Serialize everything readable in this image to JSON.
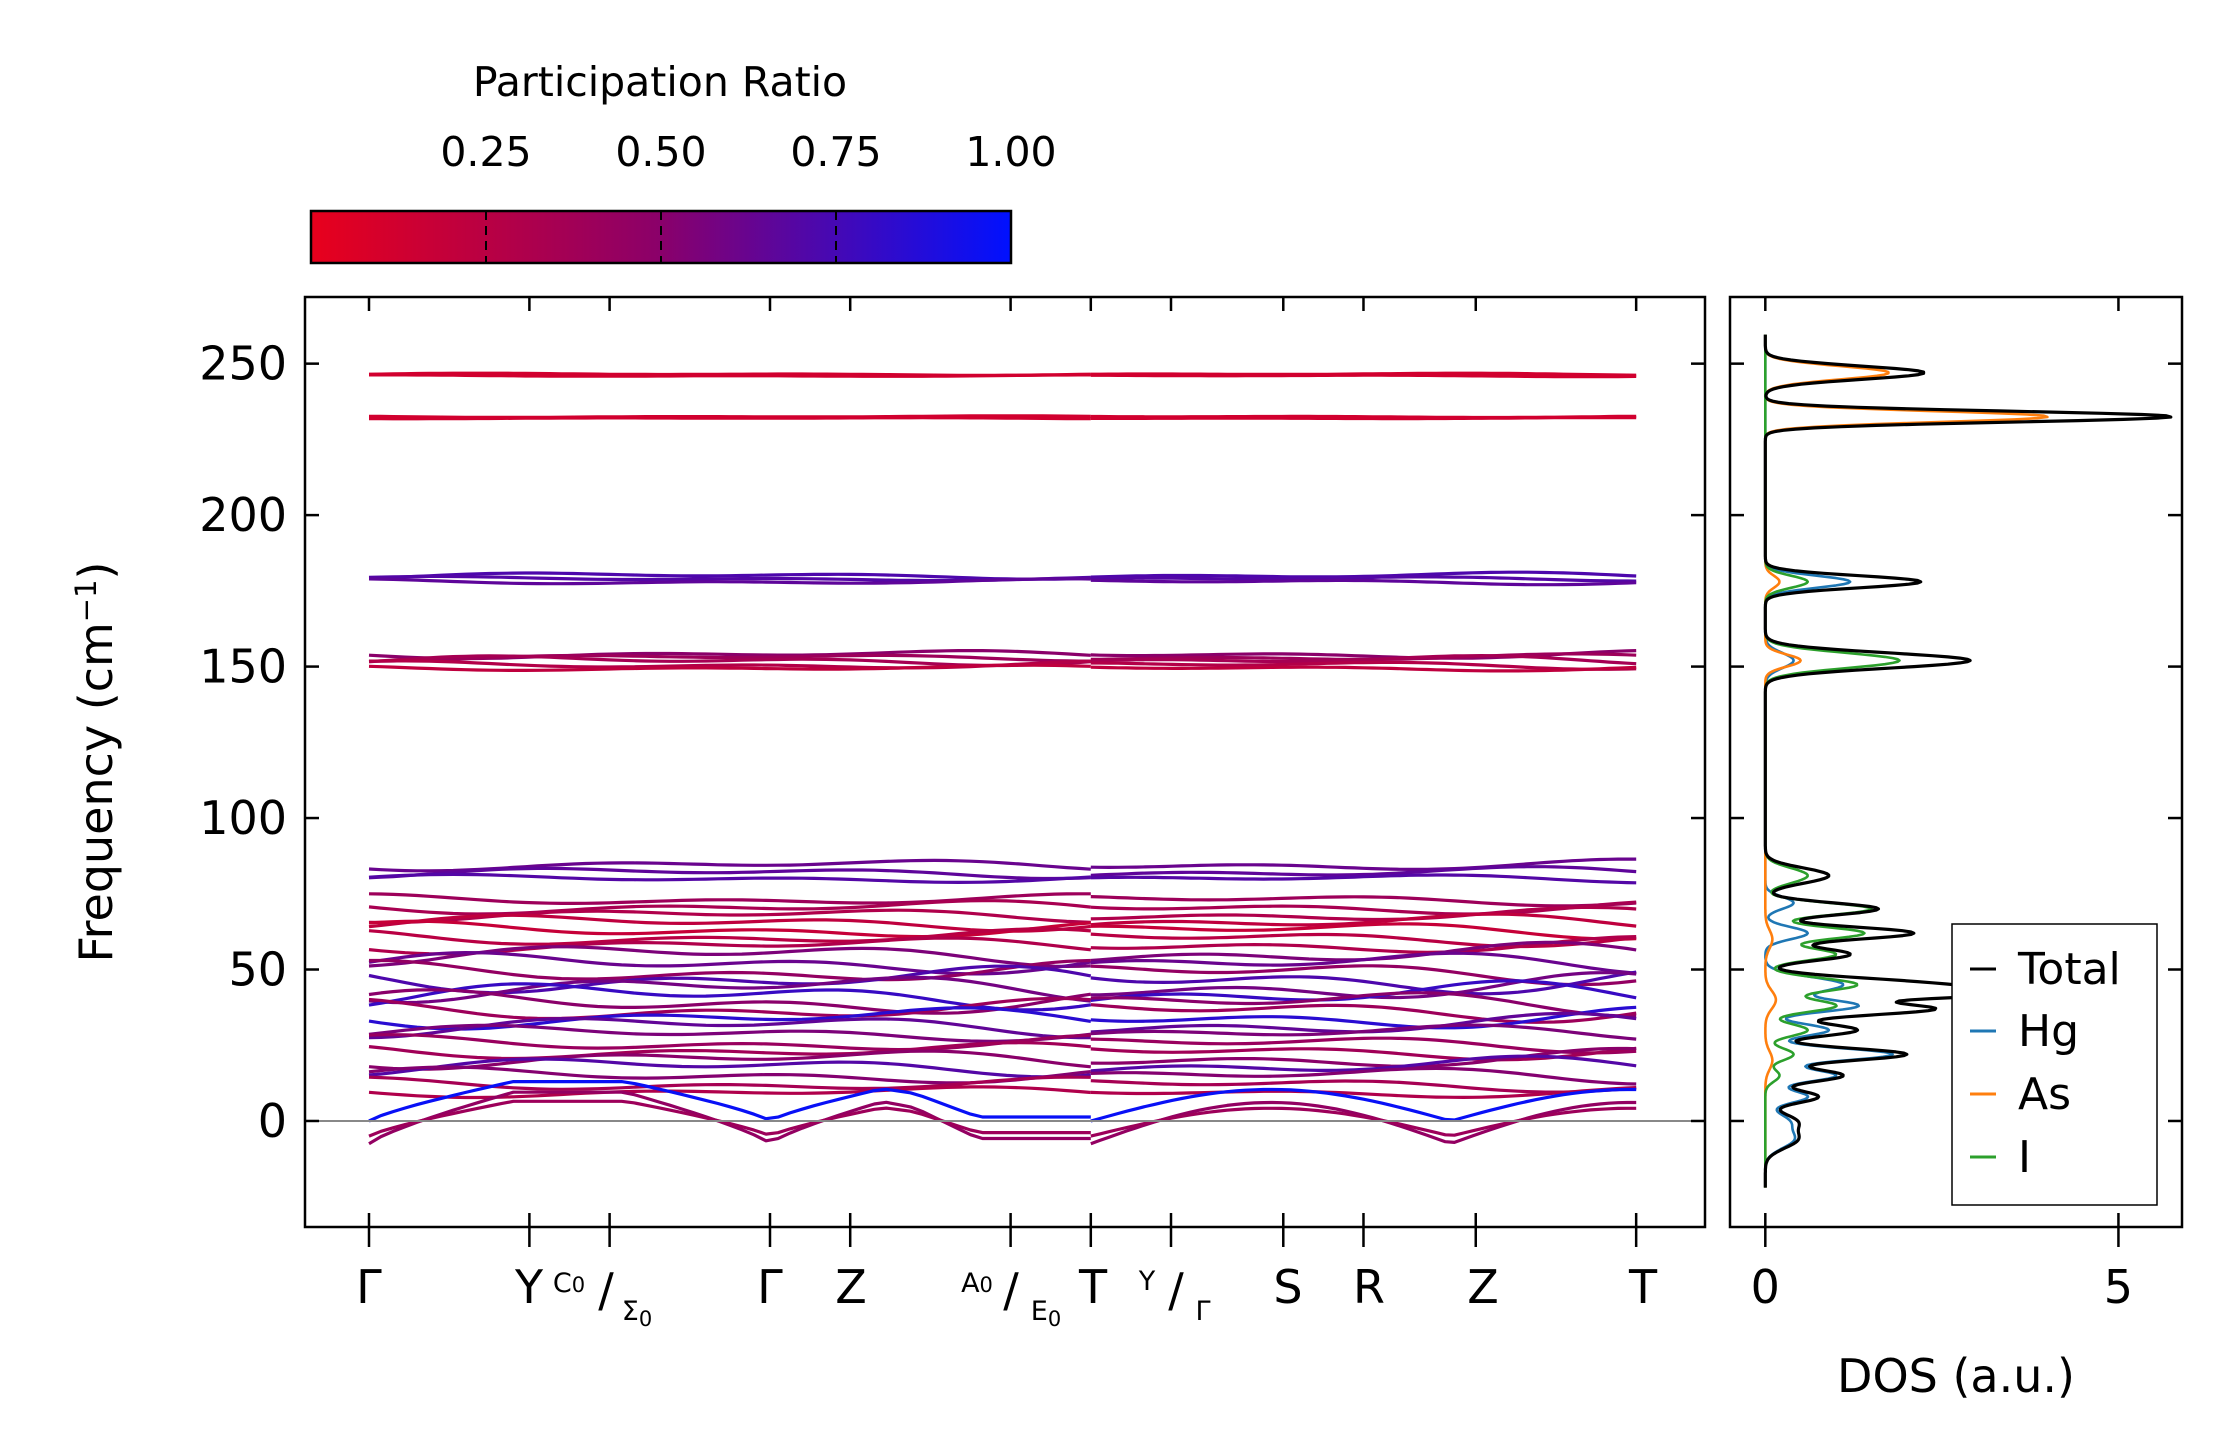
{
  "chart_data": [
    {
      "type": "line",
      "title": "",
      "ylabel": "Frequency (cm",
      "ylabel_sup": "−1",
      "ylabel_tail": ")",
      "ylim": [
        -35,
        272
      ],
      "yticks": [
        "0",
        "50",
        "100",
        "150",
        "200",
        "250"
      ],
      "ytick_values": [
        0,
        50,
        100,
        150,
        200,
        250
      ],
      "path_labels": {
        "gamma1": "Γ",
        "y": "Y",
        "c0": "C",
        "c0_sub": "0",
        "slash1": "/",
        "sigma0": "Σ",
        "sigma0_sub": "0",
        "gamma2": "Γ",
        "z1": "Z",
        "a0": "A",
        "a0_sub": "0",
        "slash2": "/",
        "e0": "E",
        "e0_sub": "0",
        "t1": "T",
        "y2": "Y",
        "slash3": "/",
        "gamma3": "Γ",
        "s": "S",
        "r": "R",
        "z2": "Z",
        "t2": "T"
      },
      "path_positions": [
        0,
        1,
        1.5,
        2.5,
        3,
        4,
        4.5,
        5,
        5.7,
        6.2,
        6.9,
        7.9
      ],
      "segment_break_after": 4.5,
      "colorbar": {
        "title": "Participation Ratio",
        "range": [
          0.0,
          1.0
        ],
        "ticks": [
          "0.25",
          "0.50",
          "0.75",
          "1.00"
        ],
        "tick_values": [
          0.25,
          0.5,
          0.75,
          1.0
        ],
        "color_low": "#e8001c",
        "color_mid": "#8a006a",
        "color_high": "#0011ff"
      },
      "bands": [
        {
          "f": 246.5,
          "pr": 0.12,
          "d": 0.4
        },
        {
          "f": 246.0,
          "pr": 0.12,
          "d": 0.3
        },
        {
          "f": 232.5,
          "pr": 0.12,
          "d": 0.3
        },
        {
          "f": 232.0,
          "pr": 0.12,
          "d": 0.2
        },
        {
          "f": 180.0,
          "pr": 0.72,
          "d": 1.2
        },
        {
          "f": 179.0,
          "pr": 0.7,
          "d": 0.8
        },
        {
          "f": 178.0,
          "pr": 0.66,
          "d": 1.0
        },
        {
          "f": 154.0,
          "pr": 0.5,
          "d": 1.5
        },
        {
          "f": 153.0,
          "pr": 0.4,
          "d": 1.2
        },
        {
          "f": 152.0,
          "pr": 0.35,
          "d": 1.8
        },
        {
          "f": 150.5,
          "pr": 0.28,
          "d": 1.4
        },
        {
          "f": 149.5,
          "pr": 0.22,
          "d": 1.0
        },
        {
          "f": 84.5,
          "pr": 0.62,
          "d": 2.0
        },
        {
          "f": 82.0,
          "pr": 0.66,
          "d": 2.0
        },
        {
          "f": 80.0,
          "pr": 0.7,
          "d": 1.5
        },
        {
          "f": 73.0,
          "pr": 0.4,
          "d": 2.0
        },
        {
          "f": 70.5,
          "pr": 0.34,
          "d": 2.5
        },
        {
          "f": 68.0,
          "pr": 0.3,
          "d": 2.5
        },
        {
          "f": 65.5,
          "pr": 0.22,
          "d": 3.0
        },
        {
          "f": 63.0,
          "pr": 0.18,
          "d": 3.0
        },
        {
          "f": 60.5,
          "pr": 0.25,
          "d": 3.0
        },
        {
          "f": 58.0,
          "pr": 0.3,
          "d": 3.0
        },
        {
          "f": 55.0,
          "pr": 0.55,
          "d": 4.0
        },
        {
          "f": 52.0,
          "pr": 0.62,
          "d": 4.0
        },
        {
          "f": 49.0,
          "pr": 0.45,
          "d": 4.0
        },
        {
          "f": 46.5,
          "pr": 0.72,
          "d": 5.0
        },
        {
          "f": 44.0,
          "pr": 0.58,
          "d": 5.0
        },
        {
          "f": 41.5,
          "pr": 0.8,
          "d": 5.0
        },
        {
          "f": 39.0,
          "pr": 0.5,
          "d": 4.5
        },
        {
          "f": 36.5,
          "pr": 0.4,
          "d": 4.0
        },
        {
          "f": 34.0,
          "pr": 0.85,
          "d": 4.0
        },
        {
          "f": 31.5,
          "pr": 0.65,
          "d": 4.0
        },
        {
          "f": 29.0,
          "pr": 0.55,
          "d": 3.0
        },
        {
          "f": 25.5,
          "pr": 0.42,
          "d": 3.0
        },
        {
          "f": 23.0,
          "pr": 0.38,
          "d": 3.0
        },
        {
          "f": 20.5,
          "pr": 0.5,
          "d": 3.5
        },
        {
          "f": 18.0,
          "pr": 0.7,
          "d": 3.5
        },
        {
          "f": 15.0,
          "pr": 0.52,
          "d": 3.0
        },
        {
          "f": 12.0,
          "pr": 0.35,
          "d": 2.5
        },
        {
          "f": 9.5,
          "pr": 0.3,
          "d": 2.0
        }
      ],
      "acoustic": [
        {
          "name": "ta1",
          "f_gamma": -7.5,
          "f_mid": 9.5,
          "pr": 0.45
        },
        {
          "name": "ta2",
          "f_gamma": -5.0,
          "f_mid": 6.5,
          "pr": 0.4
        },
        {
          "name": "la",
          "f_gamma": 0.0,
          "f_mid": 13.0,
          "pr": 0.97
        }
      ]
    },
    {
      "type": "line",
      "xlabel": "DOS (a.u.)",
      "xlim": [
        -0.5,
        5.9
      ],
      "xticks": [
        "0",
        "5"
      ],
      "xtick_values": [
        0,
        5
      ],
      "ylim": [
        -35,
        272
      ],
      "legend_position": "lower-right",
      "series": [
        {
          "name": "Total",
          "color": "#000000",
          "peaks": [
            [
              247,
              2.25,
              2.2
            ],
            [
              232.5,
              5.75,
              1.8
            ],
            [
              178,
              2.2,
              2.0
            ],
            [
              152,
              2.9,
              2.5
            ],
            [
              81,
              0.9,
              2.5
            ],
            [
              70,
              1.6,
              2.0
            ],
            [
              62,
              2.1,
              2.0
            ],
            [
              55,
              1.2,
              2.0
            ],
            [
              45,
              2.3,
              2.2
            ],
            [
              42,
              2.7,
              1.5
            ],
            [
              37,
              2.4,
              2.0
            ],
            [
              30,
              1.3,
              2.0
            ],
            [
              22,
              2.0,
              2.0
            ],
            [
              15,
              1.1,
              2.0
            ],
            [
              8,
              0.75,
              2.0
            ],
            [
              0,
              0.4,
              2.5
            ],
            [
              -6,
              0.45,
              3.0
            ]
          ]
        },
        {
          "name": "Hg",
          "color": "#1f77b4",
          "peaks": [
            [
              178,
              1.2,
              2.0
            ],
            [
              152,
              0.4,
              2.5
            ],
            [
              72,
              0.4,
              2.0
            ],
            [
              62,
              0.6,
              2.0
            ],
            [
              45,
              1.1,
              2.5
            ],
            [
              38,
              1.3,
              2.0
            ],
            [
              30,
              0.9,
              2.0
            ],
            [
              22,
              1.8,
              2.0
            ],
            [
              15,
              1.0,
              2.0
            ],
            [
              8,
              0.6,
              2.0
            ],
            [
              0,
              0.3,
              2.5
            ],
            [
              -6,
              0.4,
              3.0
            ]
          ]
        },
        {
          "name": "As",
          "color": "#ff7f0e",
          "peaks": [
            [
              247,
              1.75,
              2.2
            ],
            [
              232.5,
              4.0,
              1.8
            ],
            [
              178,
              0.2,
              2.0
            ],
            [
              152,
              0.5,
              2.0
            ],
            [
              60,
              0.1,
              3.0
            ],
            [
              40,
              0.15,
              3.0
            ],
            [
              20,
              0.1,
              3.0
            ]
          ]
        },
        {
          "name": "I",
          "color": "#2ca02c",
          "peaks": [
            [
              178,
              0.6,
              2.0
            ],
            [
              152,
              1.9,
              2.5
            ],
            [
              81,
              0.6,
              2.5
            ],
            [
              70,
              1.5,
              2.0
            ],
            [
              62,
              1.4,
              2.0
            ],
            [
              55,
              1.0,
              2.0
            ],
            [
              45,
              1.3,
              2.2
            ],
            [
              38,
              1.0,
              2.0
            ],
            [
              30,
              0.6,
              2.0
            ],
            [
              22,
              0.4,
              2.0
            ],
            [
              15,
              0.2,
              2.0
            ]
          ]
        }
      ]
    }
  ]
}
